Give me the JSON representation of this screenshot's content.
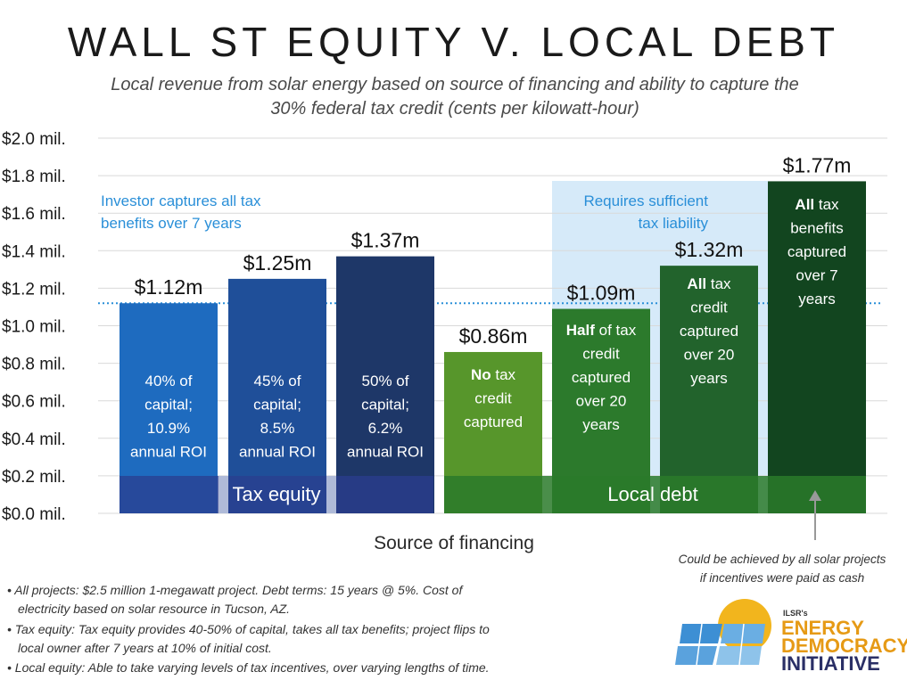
{
  "chart_data": {
    "type": "bar",
    "title": "WALL ST EQUITY V. LOCAL DEBT",
    "subtitle_lines": [
      "Local revenue from solar energy based on source of financing and ability to capture the",
      "30% federal tax credit (cents per kilowatt-hour)"
    ],
    "xlabel": "Source of financing",
    "ylim": [
      0,
      2.0
    ],
    "yticks": [
      {
        "value": 0.0,
        "label": "$0.0 mil."
      },
      {
        "value": 0.2,
        "label": "$0.2 mil."
      },
      {
        "value": 0.4,
        "label": "$0.4 mil."
      },
      {
        "value": 0.6,
        "label": "$0.6 mil."
      },
      {
        "value": 0.8,
        "label": "$0.8 mil."
      },
      {
        "value": 1.0,
        "label": "$1.0 mil."
      },
      {
        "value": 1.2,
        "label": "$1.2 mil."
      },
      {
        "value": 1.4,
        "label": "$1.4 mil."
      },
      {
        "value": 1.6,
        "label": "$1.6 mil."
      },
      {
        "value": 1.8,
        "label": "$1.8 mil."
      },
      {
        "value": 2.0,
        "label": "$2.0 mil."
      }
    ],
    "bars": [
      {
        "value": 1.12,
        "label": "$1.12m",
        "color": "#1e6bbf",
        "inner": [
          [
            "",
            "40% of"
          ],
          [
            "",
            "capital;"
          ],
          [
            "",
            "10.9%"
          ],
          [
            "",
            "annual ROI"
          ]
        ]
      },
      {
        "value": 1.25,
        "label": "$1.25m",
        "color": "#1f4f99",
        "inner": [
          [
            "",
            "45% of"
          ],
          [
            "",
            "capital;"
          ],
          [
            "",
            "8.5%"
          ],
          [
            "",
            "annual ROI"
          ]
        ]
      },
      {
        "value": 1.37,
        "label": "$1.37m",
        "color": "#1e3768",
        "inner": [
          [
            "",
            "50% of"
          ],
          [
            "",
            "capital;"
          ],
          [
            "",
            "6.2%"
          ],
          [
            "",
            "annual ROI"
          ]
        ]
      },
      {
        "value": 0.86,
        "label": "$0.86m",
        "color": "#57962b",
        "inner": [
          [
            "No",
            " tax"
          ],
          [
            "",
            "credit"
          ],
          [
            "",
            "captured"
          ]
        ]
      },
      {
        "value": 1.09,
        "label": "$1.09m",
        "color": "#2c7a2c",
        "inner": [
          [
            "Half",
            " of tax"
          ],
          [
            "",
            "credit"
          ],
          [
            "",
            "captured"
          ],
          [
            "",
            "over 20"
          ],
          [
            "",
            "years"
          ]
        ]
      },
      {
        "value": 1.32,
        "label": "$1.32m",
        "color": "#22632c",
        "inner": [
          [
            "All",
            " tax"
          ],
          [
            "",
            "credit"
          ],
          [
            "",
            "captured"
          ],
          [
            "",
            "over 20"
          ],
          [
            "",
            "years"
          ]
        ]
      },
      {
        "value": 1.77,
        "label": "$1.77m",
        "color": "#12451f",
        "inner": [
          [
            "All",
            " tax"
          ],
          [
            "",
            "benefits"
          ],
          [
            "",
            "captured"
          ],
          [
            "",
            "over 7"
          ],
          [
            "",
            "years"
          ]
        ]
      }
    ],
    "reference_line": 1.12,
    "groups": [
      {
        "label": "Tax equity",
        "color": "#2b3d8f"
      },
      {
        "label": "Local debt",
        "color": "#2a7a2a"
      }
    ],
    "annotations": {
      "investor": [
        "Investor captures all tax",
        "benefits over 7 years"
      ],
      "requires": [
        "Requires sufficient",
        "tax liability"
      ],
      "cash": [
        "Could be achieved by all solar projects",
        "if incentives were paid as cash"
      ]
    }
  },
  "footnotes": [
    [
      "• All projects: $2.5 million 1-megawatt project. Debt terms: 15 years @ 5%. Cost of",
      "electricity based on solar resource in Tucson, AZ."
    ],
    [
      "• Tax equity: Tax equity provides 40-50% of capital, takes all tax benefits; project flips to",
      "local owner after 7 years at 10% of initial cost."
    ],
    [
      "• Local equity: Able to take varying levels of tax incentives, over varying lengths of time."
    ]
  ],
  "logo": {
    "small": "ILSR's",
    "line1": "ENERGY",
    "line2": "DEMOCRACY",
    "line3": "INITIATIVE"
  }
}
